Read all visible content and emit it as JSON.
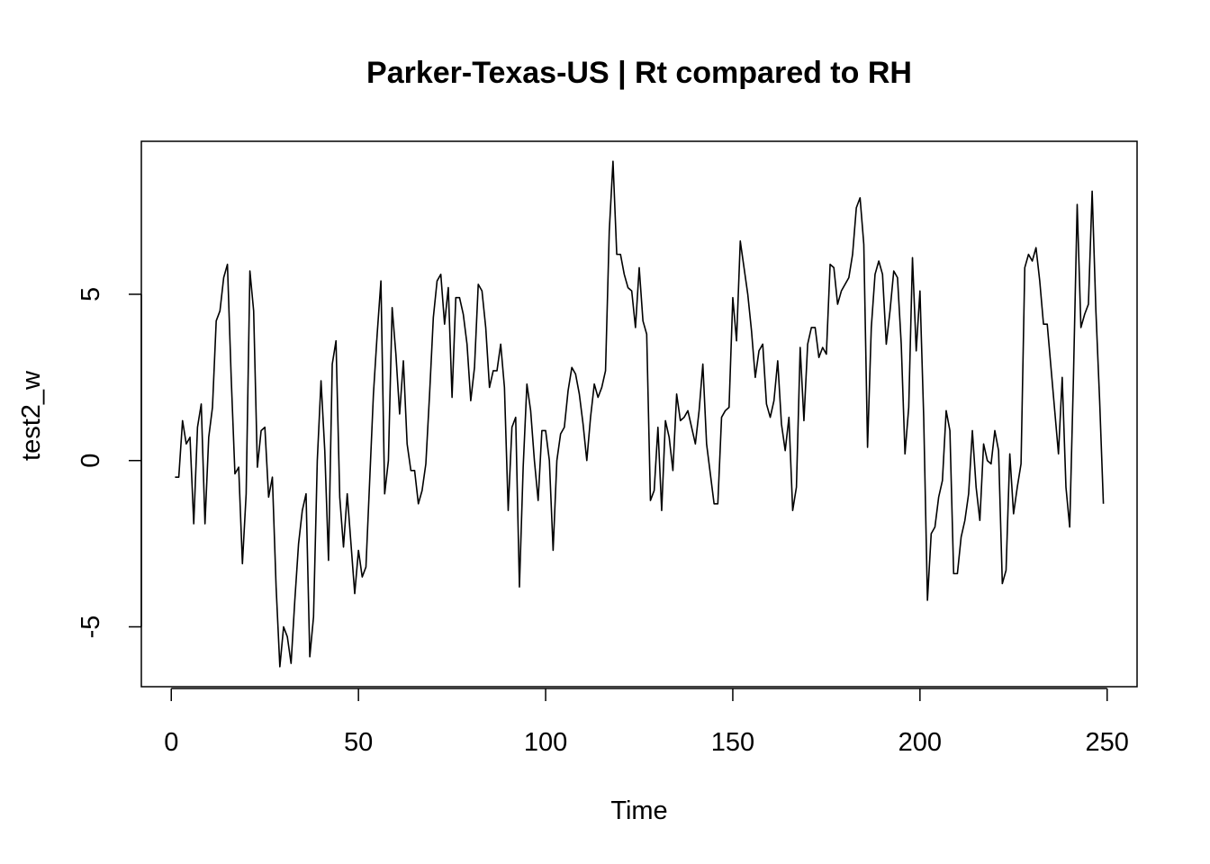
{
  "chart_data": {
    "type": "line",
    "title": "Parker-Texas-US | Rt compared to RH",
    "xlabel": "Time",
    "ylabel": "test2_w",
    "xlim": [
      -8,
      258
    ],
    "ylim": [
      -6.8,
      9.6
    ],
    "grid": false,
    "legend": "none",
    "x_ticks": [
      0,
      50,
      100,
      150,
      200,
      250
    ],
    "x_tick_labels": [
      "0",
      "50",
      "100",
      "150",
      "200",
      "250"
    ],
    "y_ticks": [
      -5,
      0,
      5
    ],
    "y_tick_labels": [
      "-5",
      "0",
      "5"
    ],
    "x_start": 1,
    "colors": {
      "line": "#000000",
      "frame": "#000000",
      "background": "#ffffff"
    },
    "series": [
      {
        "values": [
          -0.5,
          -0.5,
          1.2,
          0.5,
          0.7,
          -1.9,
          1.0,
          1.7,
          -1.9,
          0.7,
          1.6,
          4.2,
          4.5,
          5.5,
          5.9,
          2.5,
          -0.4,
          -0.2,
          -3.1,
          -1.0,
          5.7,
          4.5,
          -0.2,
          0.9,
          1.0,
          -1.1,
          -0.5,
          -3.8,
          -6.2,
          -5.0,
          -5.3,
          -6.1,
          -4.2,
          -2.5,
          -1.5,
          -1.0,
          -5.9,
          -4.7,
          0.0,
          2.4,
          0.3,
          -3.0,
          2.9,
          3.6,
          -1.1,
          -2.6,
          -1.0,
          -2.5,
          -4.0,
          -2.7,
          -3.5,
          -3.2,
          -0.6,
          2.0,
          3.8,
          5.4,
          -1.0,
          0.0,
          4.6,
          3.2,
          1.4,
          3.0,
          0.5,
          -0.3,
          -0.3,
          -1.3,
          -0.9,
          -0.1,
          2.0,
          4.3,
          5.4,
          5.6,
          4.1,
          5.2,
          1.9,
          4.9,
          4.9,
          4.4,
          3.5,
          1.8,
          2.8,
          5.3,
          5.1,
          4.0,
          2.2,
          2.7,
          2.7,
          3.5,
          2.2,
          -1.5,
          1.0,
          1.3,
          -3.8,
          -0.2,
          2.3,
          1.5,
          0.0,
          -1.2,
          0.9,
          0.9,
          0.0,
          -2.7,
          0.0,
          0.8,
          1.0,
          2.1,
          2.8,
          2.6,
          2.0,
          1.1,
          0.0,
          1.3,
          2.3,
          1.9,
          2.2,
          2.7,
          6.9,
          9.0,
          6.2,
          6.2,
          5.6,
          5.2,
          5.1,
          4.0,
          5.8,
          4.2,
          3.8,
          -1.2,
          -0.9,
          1.0,
          -1.5,
          1.2,
          0.7,
          -0.3,
          2.0,
          1.2,
          1.3,
          1.5,
          1.0,
          0.5,
          1.5,
          2.9,
          0.5,
          -0.4,
          -1.3,
          -1.3,
          1.3,
          1.5,
          1.6,
          4.9,
          3.6,
          6.6,
          5.8,
          5.0,
          3.9,
          2.5,
          3.3,
          3.5,
          1.7,
          1.3,
          1.8,
          3.0,
          1.1,
          0.3,
          1.3,
          -1.5,
          -0.8,
          3.4,
          1.2,
          3.5,
          4.0,
          4.0,
          3.1,
          3.4,
          3.2,
          5.9,
          5.8,
          4.7,
          5.1,
          5.3,
          5.5,
          6.2,
          7.6,
          7.9,
          6.5,
          0.4,
          4.0,
          5.6,
          6.0,
          5.6,
          3.5,
          4.5,
          5.7,
          5.5,
          3.5,
          0.2,
          1.6,
          6.1,
          3.3,
          5.1,
          1.3,
          -4.2,
          -2.2,
          -2.0,
          -1.1,
          -0.6,
          1.5,
          0.9,
          -3.4,
          -3.4,
          -2.3,
          -1.8,
          -1.0,
          0.9,
          -0.8,
          -1.8,
          0.5,
          0.0,
          -0.1,
          0.9,
          0.3,
          -3.7,
          -3.3,
          0.2,
          -1.6,
          -0.8,
          -0.1,
          5.8,
          6.2,
          6.0,
          6.4,
          5.4,
          4.1,
          4.1,
          2.8,
          1.5,
          0.2,
          2.5,
          -0.8,
          -2.0,
          2.5,
          7.7,
          4.0,
          4.4,
          4.7,
          8.1,
          4.5,
          1.8,
          -1.3
        ]
      }
    ]
  }
}
